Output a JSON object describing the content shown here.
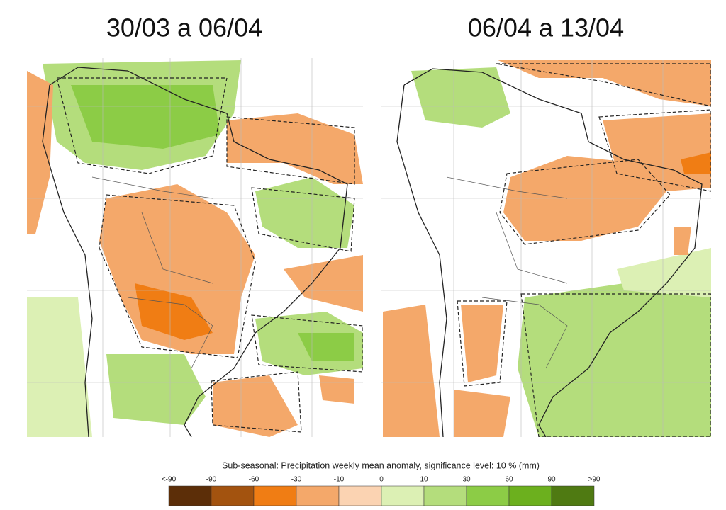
{
  "panels": [
    {
      "title": "30/03 a 06/04"
    },
    {
      "title": "06/04 a 13/04"
    }
  ],
  "legend": {
    "title": "Sub-seasonal: Precipitation weekly mean anomaly, significance level: 10 % (mm)",
    "labels": [
      "<-90",
      "-90",
      "-60",
      "-30",
      "-10",
      "0",
      "10",
      "30",
      "60",
      "90",
      ">90"
    ],
    "colors": [
      "#5c2e08",
      "#a3530f",
      "#f07d14",
      "#f4a86a",
      "#fbd3b2",
      "#dcf0b4",
      "#b4dd7c",
      "#8ccc46",
      "#6cb01e",
      "#4f7a12"
    ]
  }
}
